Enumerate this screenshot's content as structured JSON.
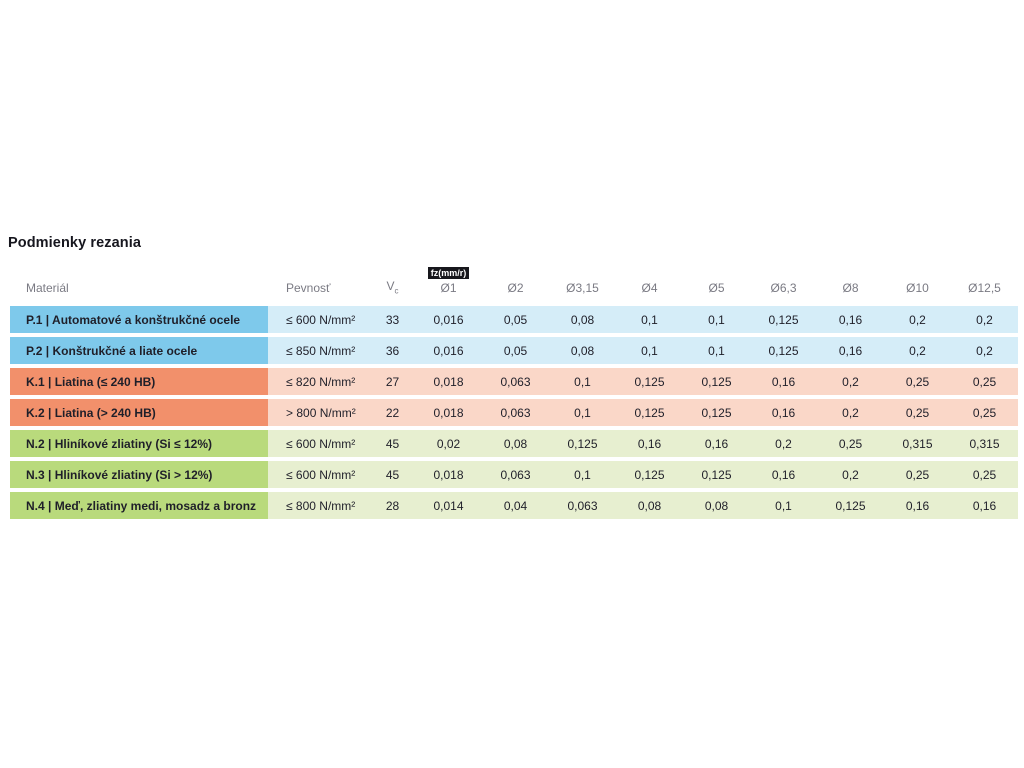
{
  "page": {
    "title": "Podmienky rezania"
  },
  "table": {
    "headers": {
      "material": "Materiál",
      "strength": "Pevnosť",
      "vc_main": "V",
      "vc_sub": "c",
      "fz_badge": "fz(mm/r)",
      "diameters": [
        "Ø1",
        "Ø2",
        "Ø3,15",
        "Ø4",
        "Ø5",
        "Ø6,3",
        "Ø8",
        "Ø10",
        "Ø12,5"
      ]
    },
    "rows": [
      {
        "group": "p",
        "material": "P.1 | Automatové a konštrukčné ocele",
        "strength": "≤ 600 N/mm²",
        "vc": "33",
        "fz": [
          "0,016",
          "0,05",
          "0,08",
          "0,1",
          "0,1",
          "0,125",
          "0,16",
          "0,2",
          "0,2"
        ]
      },
      {
        "group": "p",
        "material": "P.2 | Konštrukčné a liate ocele",
        "strength": "≤ 850 N/mm²",
        "vc": "36",
        "fz": [
          "0,016",
          "0,05",
          "0,08",
          "0,1",
          "0,1",
          "0,125",
          "0,16",
          "0,2",
          "0,2"
        ]
      },
      {
        "group": "k",
        "material": "K.1 | Liatina (≤ 240 HB)",
        "strength": "≤ 820 N/mm²",
        "vc": "27",
        "fz": [
          "0,018",
          "0,063",
          "0,1",
          "0,125",
          "0,125",
          "0,16",
          "0,2",
          "0,25",
          "0,25"
        ]
      },
      {
        "group": "k",
        "material": "K.2 | Liatina (> 240 HB)",
        "strength": "> 800 N/mm²",
        "vc": "22",
        "fz": [
          "0,018",
          "0,063",
          "0,1",
          "0,125",
          "0,125",
          "0,16",
          "0,2",
          "0,25",
          "0,25"
        ]
      },
      {
        "group": "n",
        "material": "N.2 | Hliníkové zliatiny (Si ≤ 12%)",
        "strength": "≤ 600 N/mm²",
        "vc": "45",
        "fz": [
          "0,02",
          "0,08",
          "0,125",
          "0,16",
          "0,16",
          "0,2",
          "0,25",
          "0,315",
          "0,315"
        ]
      },
      {
        "group": "n",
        "material": "N.3 | Hliníkové zliatiny (Si > 12%)",
        "strength": "≤ 600 N/mm²",
        "vc": "45",
        "fz": [
          "0,018",
          "0,063",
          "0,1",
          "0,125",
          "0,125",
          "0,16",
          "0,2",
          "0,25",
          "0,25"
        ]
      },
      {
        "group": "n",
        "material": "N.4 | Meď, zliatiny medi, mosadz a bronz",
        "strength": "≤ 800 N/mm²",
        "vc": "28",
        "fz": [
          "0,014",
          "0,04",
          "0,063",
          "0,08",
          "0,08",
          "0,1",
          "0,125",
          "0,16",
          "0,16"
        ]
      }
    ]
  },
  "colors": {
    "steel_dark": "#7ec9eb",
    "steel_light": "#d5edf8",
    "cast_iron_dark": "#f2906b",
    "cast_iron_light": "#fad7c8",
    "nonferrous_dark": "#b9da7c",
    "nonferrous_light": "#e7efd0",
    "badge_bg": "#17171c",
    "badge_text": "#ffffff",
    "header_text": "#7a7a83",
    "title_text": "#16161e",
    "cell_text": "#1f1f29"
  }
}
